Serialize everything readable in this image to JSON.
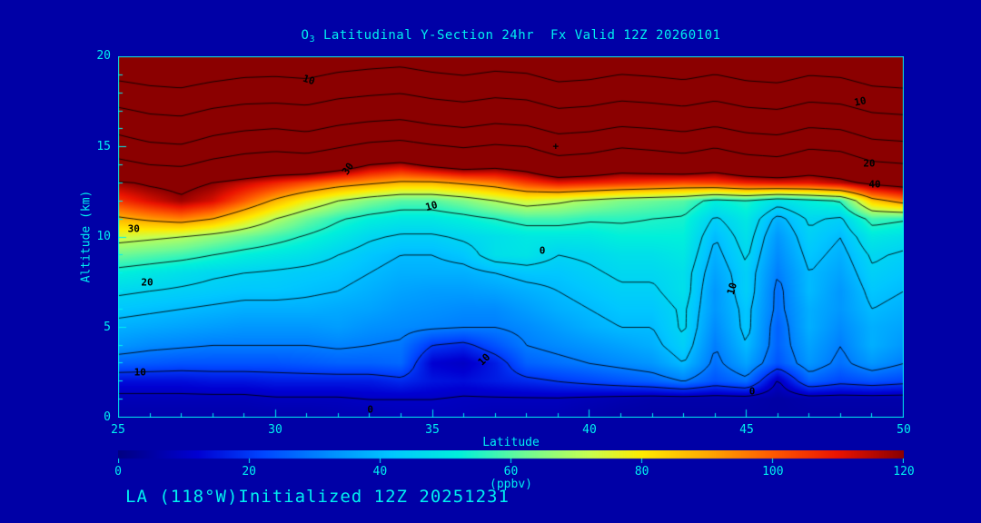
{
  "window": {
    "background": "#0000a6",
    "text_color": "#00f0f0"
  },
  "title": {
    "prefix": "O",
    "subscript": "3",
    "rest": " Latitudinal Y-Section 24hr  Fx Valid 12Z 20260101"
  },
  "footer": {
    "text": "LA (118°W)Initialized 12Z 20251231"
  },
  "x_axis": {
    "label": "Latitude",
    "min": 25,
    "max": 50,
    "major_ticks": [
      25,
      30,
      35,
      40,
      45,
      50
    ],
    "minor_step": 1
  },
  "y_axis": {
    "label": "Altitude (km)",
    "min": 0,
    "max": 20,
    "major_ticks": [
      0,
      5,
      10,
      15,
      20
    ],
    "minor_step": 1
  },
  "colorbar": {
    "label": "(ppbv)",
    "min": 0,
    "max": 120,
    "ticks": [
      0,
      20,
      40,
      60,
      80,
      100,
      120
    ]
  },
  "chart_data": {
    "type": "heatmap",
    "title": "O3 Latitudinal Y-Section 24hr Fx Valid 12Z 20260101",
    "xlabel": "Latitude",
    "ylabel": "Altitude (km)",
    "units": "ppbv",
    "x_range": [
      25,
      50
    ],
    "y_range": [
      0,
      20
    ],
    "lat": [
      25,
      26,
      27,
      28,
      29,
      30,
      31,
      32,
      33,
      34,
      35,
      36,
      37,
      38,
      39,
      40,
      41,
      42,
      43,
      44,
      45,
      46,
      47,
      48,
      49,
      50
    ],
    "alt": [
      0,
      1,
      2,
      3,
      4,
      5,
      6,
      7,
      8,
      9,
      10,
      11,
      12,
      13,
      14,
      15,
      16,
      17,
      18,
      19,
      20
    ],
    "values": [
      [
        6,
        6,
        6,
        6,
        6,
        6,
        6,
        7,
        7,
        8,
        8,
        8,
        7,
        7,
        7,
        6,
        5,
        5,
        5,
        5,
        5,
        5,
        5,
        5,
        5,
        5
      ],
      [
        8,
        8,
        8,
        8,
        8,
        9,
        9,
        9,
        10,
        10,
        10,
        9,
        9,
        9,
        9,
        8,
        7,
        6,
        6,
        6,
        6,
        5,
        6,
        6,
        6,
        6
      ],
      [
        14,
        14,
        14,
        15,
        15,
        16,
        16,
        16,
        16,
        18,
        15,
        14,
        16,
        18,
        20,
        22,
        24,
        26,
        30,
        24,
        28,
        9,
        26,
        22,
        24,
        22
      ],
      [
        26,
        25,
        24,
        24,
        24,
        24,
        25,
        26,
        26,
        27,
        12,
        10,
        16,
        26,
        28,
        30,
        32,
        34,
        40,
        28,
        36,
        24,
        34,
        28,
        34,
        30
      ],
      [
        34,
        32,
        31,
        30,
        30,
        30,
        30,
        31,
        30,
        29,
        20,
        18,
        24,
        30,
        32,
        34,
        36,
        38,
        44,
        30,
        40,
        26,
        36,
        30,
        38,
        34
      ],
      [
        38,
        37,
        36,
        35,
        34,
        34,
        34,
        35,
        33,
        32,
        31,
        30,
        30,
        32,
        35,
        38,
        40,
        40,
        46,
        32,
        42,
        26,
        38,
        32,
        38,
        36
      ],
      [
        42,
        41,
        40,
        39,
        38,
        38,
        38,
        37,
        36,
        34,
        33,
        32,
        32,
        35,
        38,
        40,
        42,
        42,
        46,
        34,
        42,
        28,
        38,
        34,
        40,
        38
      ],
      [
        46,
        45,
        44,
        43,
        42,
        42,
        41,
        40,
        38,
        36,
        35,
        35,
        36,
        38,
        40,
        42,
        44,
        44,
        48,
        34,
        44,
        28,
        40,
        34,
        42,
        40
      ],
      [
        52,
        50,
        48,
        46,
        45,
        44,
        43,
        42,
        40,
        38,
        38,
        38,
        40,
        42,
        42,
        44,
        46,
        46,
        48,
        36,
        44,
        30,
        40,
        36,
        44,
        42
      ],
      [
        62,
        60,
        58,
        55,
        52,
        50,
        48,
        45,
        42,
        40,
        40,
        42,
        48,
        49,
        45,
        46,
        48,
        48,
        50,
        38,
        46,
        32,
        42,
        38,
        46,
        44
      ],
      [
        74,
        72,
        70,
        66,
        62,
        58,
        54,
        50,
        46,
        44,
        44,
        46,
        48,
        50,
        50,
        50,
        52,
        52,
        52,
        40,
        48,
        34,
        44,
        40,
        50,
        48
      ],
      [
        88,
        92,
        95,
        90,
        80,
        70,
        62,
        56,
        52,
        50,
        50,
        52,
        55,
        58,
        58,
        56,
        56,
        55,
        54,
        44,
        50,
        38,
        46,
        44,
        58,
        56
      ],
      [
        105,
        112,
        118,
        112,
        100,
        88,
        78,
        70,
        64,
        60,
        60,
        64,
        70,
        75,
        72,
        68,
        64,
        62,
        60,
        52,
        55,
        48,
        52,
        56,
        85,
        95
      ],
      [
        118,
        122,
        124,
        120,
        114,
        108,
        102,
        96,
        92,
        88,
        88,
        92,
        96,
        104,
        110,
        108,
        106,
        104,
        102,
        104,
        108,
        110,
        110,
        115,
        124,
        128
      ],
      [
        150,
        160,
        164,
        150,
        142,
        138,
        140,
        132,
        120,
        116,
        124,
        130,
        126,
        130,
        144,
        140,
        132,
        136,
        140,
        132,
        142,
        146,
        134,
        138,
        154,
        158
      ],
      [
        180,
        192,
        196,
        182,
        172,
        168,
        172,
        162,
        152,
        148,
        156,
        162,
        156,
        160,
        176,
        172,
        162,
        166,
        172,
        162,
        174,
        178,
        164,
        168,
        186,
        190
      ],
      [
        210,
        224,
        228,
        212,
        204,
        200,
        206,
        194,
        186,
        182,
        192,
        198,
        190,
        194,
        210,
        206,
        196,
        200,
        206,
        196,
        208,
        212,
        198,
        202,
        220,
        224
      ],
      [
        244,
        256,
        260,
        246,
        238,
        236,
        240,
        228,
        222,
        218,
        228,
        234,
        226,
        230,
        246,
        242,
        232,
        236,
        242,
        232,
        244,
        248,
        234,
        238,
        254,
        258
      ],
      [
        278,
        288,
        292,
        280,
        272,
        270,
        274,
        262,
        256,
        252,
        262,
        268,
        260,
        264,
        280,
        276,
        266,
        270,
        276,
        266,
        278,
        282,
        268,
        272,
        288,
        292
      ],
      [
        312,
        320,
        324,
        314,
        306,
        304,
        308,
        296,
        290,
        286,
        296,
        302,
        294,
        298,
        314,
        310,
        300,
        304,
        310,
        300,
        312,
        316,
        302,
        306,
        322,
        326
      ],
      [
        346,
        352,
        356,
        348,
        340,
        338,
        342,
        330,
        324,
        320,
        330,
        336,
        328,
        332,
        348,
        344,
        334,
        338,
        344,
        334,
        346,
        350,
        336,
        340,
        356,
        360
      ]
    ],
    "contour_levels": [
      10,
      20,
      30,
      40,
      45,
      55,
      70,
      90,
      120,
      160,
      200,
      250,
      300
    ],
    "colormap_stops": [
      [
        0,
        0,
        0,
        131
      ],
      [
        12,
        0,
        0,
        210
      ],
      [
        22,
        0,
        70,
        255
      ],
      [
        32,
        0,
        140,
        255
      ],
      [
        42,
        0,
        200,
        255
      ],
      [
        52,
        0,
        240,
        220
      ],
      [
        62,
        110,
        250,
        150
      ],
      [
        72,
        200,
        255,
        80
      ],
      [
        80,
        255,
        235,
        0
      ],
      [
        90,
        255,
        170,
        0
      ],
      [
        100,
        255,
        90,
        0
      ],
      [
        110,
        235,
        20,
        0
      ],
      [
        120,
        139,
        0,
        0
      ]
    ],
    "contour_labels": [
      {
        "text": "10",
        "fx": 0.243,
        "fy": 0.065,
        "rot": 18
      },
      {
        "text": "10",
        "fx": 0.945,
        "fy": 0.126,
        "rot": -12
      },
      {
        "text": "20",
        "fx": 0.956,
        "fy": 0.297,
        "rot": 0
      },
      {
        "text": "30",
        "fx": 0.293,
        "fy": 0.312,
        "rot": -55
      },
      {
        "text": "40",
        "fx": 0.963,
        "fy": 0.354,
        "rot": 0
      },
      {
        "text": "10",
        "fx": 0.399,
        "fy": 0.414,
        "rot": -15
      },
      {
        "text": "30",
        "fx": 0.02,
        "fy": 0.477,
        "rot": 0
      },
      {
        "text": "0",
        "fx": 0.54,
        "fy": 0.538,
        "rot": 0
      },
      {
        "text": "20",
        "fx": 0.037,
        "fy": 0.625,
        "rot": 0
      },
      {
        "text": "10",
        "fx": 0.782,
        "fy": 0.643,
        "rot": -75
      },
      {
        "text": "10",
        "fx": 0.466,
        "fy": 0.839,
        "rot": -45
      },
      {
        "text": "10",
        "fx": 0.028,
        "fy": 0.874,
        "rot": 0
      },
      {
        "text": "0",
        "fx": 0.321,
        "fy": 0.977,
        "rot": 0
      },
      {
        "text": "0",
        "fx": 0.807,
        "fy": 0.927,
        "rot": 0
      }
    ],
    "annotations": [
      {
        "text": "+",
        "fx": 0.557,
        "fy": 0.249
      }
    ]
  }
}
